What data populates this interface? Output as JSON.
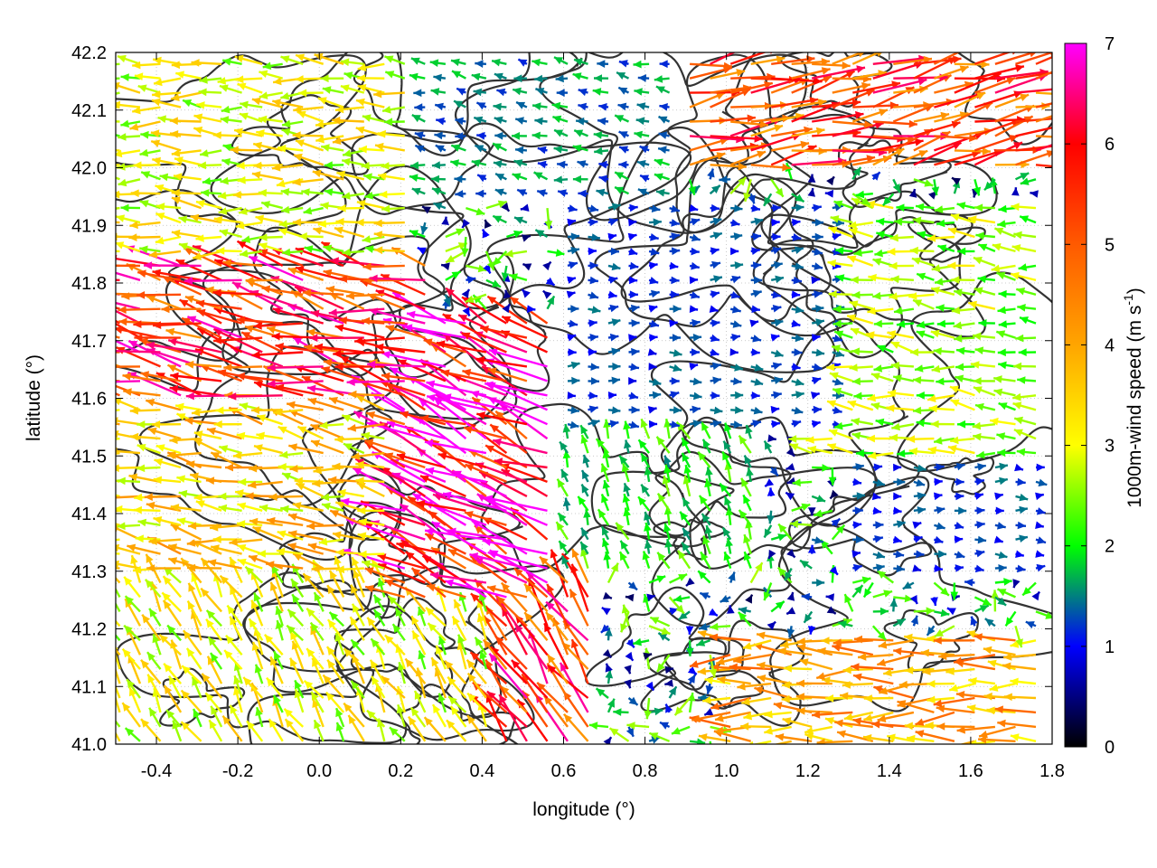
{
  "chart_data": {
    "type": "vector-field",
    "xlabel": "longitude (°)",
    "ylabel": "latitude (°)",
    "colorbar_label_main": "1000m-wind speed (m s",
    "colorbar_label_sup": "-1",
    "colorbar_label_end": ")",
    "xlim": [
      -0.5,
      1.8
    ],
    "ylim": [
      41.0,
      42.2
    ],
    "xticks": [
      -0.4,
      -0.2,
      0.0,
      0.2,
      0.4,
      0.6,
      0.8,
      1.0,
      1.2,
      1.4,
      1.6,
      1.8
    ],
    "xtick_labels": [
      "-0.4",
      "-0.2",
      "0.0",
      "0.2",
      "0.4",
      "0.6",
      "0.8",
      "1.0",
      "1.2",
      "1.4",
      "1.6",
      "1.8"
    ],
    "yticks": [
      41.0,
      41.1,
      41.2,
      41.3,
      41.4,
      41.5,
      41.6,
      41.7,
      41.8,
      41.9,
      42.0,
      42.1,
      42.2
    ],
    "ytick_labels": [
      "41.0",
      "41.1",
      "41.2",
      "41.3",
      "41.4",
      "41.5",
      "41.6",
      "41.7",
      "41.8",
      "41.9",
      "42.0",
      "42.1",
      "42.2"
    ],
    "colorbar": {
      "range": [
        0,
        7
      ],
      "ticks": [
        0,
        1,
        2,
        3,
        4,
        5,
        6,
        7
      ],
      "tick_labels": [
        "0",
        "1",
        "2",
        "3",
        "4",
        "5",
        "6",
        "7"
      ],
      "colors": [
        "#000000",
        "#0000ff",
        "#00ff00",
        "#ffff00",
        "#ffa500",
        "#ff5a00",
        "#ff0000",
        "#ff00ff"
      ]
    },
    "grid": true,
    "grid_style": "dotted",
    "contour_color": "#333333",
    "wind_regions": [
      {
        "lon": [
          -0.5,
          0.25
        ],
        "lat": [
          41.85,
          42.2
        ],
        "u": -3.2,
        "v": 0.2,
        "speed_mean": 3.0
      },
      {
        "lon": [
          -0.5,
          0.3
        ],
        "lat": [
          41.6,
          41.85
        ],
        "u": -5.3,
        "v": 1.2,
        "speed_mean": 5.5
      },
      {
        "lon": [
          0.2,
          0.6
        ],
        "lat": [
          41.25,
          41.75
        ],
        "u": -5.5,
        "v": 2.5,
        "speed_mean": 6.2
      },
      {
        "lon": [
          -0.5,
          0.35
        ],
        "lat": [
          41.3,
          41.6
        ],
        "u": -3.0,
        "v": 0.5,
        "speed_mean": 3.5
      },
      {
        "lon": [
          -0.5,
          0.45
        ],
        "lat": [
          41.0,
          41.3
        ],
        "u": -1.2,
        "v": 2.0,
        "speed_mean": 3.0
      },
      {
        "lon": [
          0.45,
          0.7
        ],
        "lat": [
          41.0,
          41.3
        ],
        "u": -2.5,
        "v": 3.5,
        "speed_mean": 5.5
      },
      {
        "lon": [
          0.6,
          1.3
        ],
        "lat": [
          41.55,
          41.95
        ],
        "u": 0.5,
        "v": 0.0,
        "speed_mean": 1.2
      },
      {
        "lon": [
          0.55,
          1.1
        ],
        "lat": [
          41.3,
          41.55
        ],
        "u": -0.5,
        "v": 1.2,
        "speed_mean": 2.0
      },
      {
        "lon": [
          1.2,
          1.8
        ],
        "lat": [
          41.5,
          41.95
        ],
        "u": -2.5,
        "v": 0.3,
        "speed_mean": 2.6
      },
      {
        "lon": [
          1.3,
          1.8
        ],
        "lat": [
          41.3,
          41.5
        ],
        "u": 0.5,
        "v": 0.0,
        "speed_mean": 1.2
      },
      {
        "lon": [
          1.0,
          1.8
        ],
        "lat": [
          41.0,
          41.2
        ],
        "u": -4.0,
        "v": 0.0,
        "speed_mean": 4.0
      },
      {
        "lon": [
          0.9,
          1.8
        ],
        "lat": [
          42.0,
          42.2
        ],
        "u": 5.0,
        "v": 1.0,
        "speed_mean": 5.2
      },
      {
        "lon": [
          0.25,
          0.9
        ],
        "lat": [
          41.95,
          42.2
        ],
        "u": -1.0,
        "v": 0.2,
        "speed_mean": 1.5
      }
    ]
  }
}
